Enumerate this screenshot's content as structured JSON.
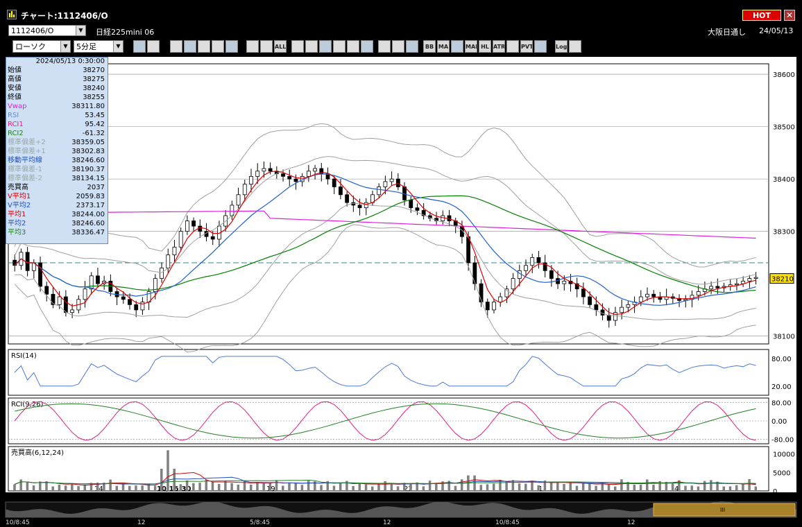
{
  "window": {
    "title": "チャート:1112406/O",
    "hot_label": "HOT",
    "close_label": "✕"
  },
  "symbol_bar": {
    "symbol_code": "1112406/O",
    "symbol_name": "日経225mini 06",
    "market": "大阪日通し",
    "date": "24/05/13"
  },
  "toolbar": {
    "chart_type": "ローソク",
    "interval": "5分足",
    "buttons": [
      "search-icon",
      "crosshair-icon",
      "insert-icon",
      "zoom-icon",
      "range-icon",
      "compare-icon",
      "line-icon",
      "bar-icon",
      "bar2-icon",
      "all-icon",
      "pen-icon",
      "draw-icon",
      "cursor-icon",
      "arrow-icon",
      "note-icon",
      "clear-icon",
      "grid-icon",
      "wrench-icon",
      "palette-icon",
      "bb-icon",
      "ma-icon",
      "env-icon",
      "mae-icon",
      "hl-icon",
      "atr-icon",
      "ichimoku-icon",
      "pvt-icon",
      "fullscreen-icon",
      "log-icon",
      "export-icon"
    ],
    "button_labels": [
      "",
      "",
      "",
      "",
      "",
      "",
      "",
      "",
      "",
      "ALL",
      "",
      "",
      "",
      "",
      "",
      "",
      "",
      "",
      "",
      "BB",
      "MA",
      "",
      "MAE",
      "HL",
      "ATR",
      "",
      "PVT",
      "",
      "Log",
      ""
    ]
  },
  "data_window": {
    "datetime": "2024/05/13  0:30:00",
    "rows": [
      {
        "k": "始値",
        "v": "38270",
        "c": "#000"
      },
      {
        "k": "高値",
        "v": "38275",
        "c": "#000"
      },
      {
        "k": "安値",
        "v": "38240",
        "c": "#000"
      },
      {
        "k": "終値",
        "v": "38255",
        "c": "#000"
      },
      {
        "k": "Vwap",
        "v": "38311.80",
        "c": "#e020e0"
      },
      {
        "k": "RSI",
        "v": "53.45",
        "c": "#6a8ad0"
      },
      {
        "k": "RCI1",
        "v": "95.42",
        "c": "#e02080"
      },
      {
        "k": "RCI2",
        "v": "-61.32",
        "c": "#208020"
      },
      {
        "k": "標準偏差+2",
        "v": "38359.05",
        "c": "#9aa"
      },
      {
        "k": "標準偏差+1",
        "v": "38302.83",
        "c": "#9aa"
      },
      {
        "k": "移動平均線",
        "v": "38246.60",
        "c": "#2050c0"
      },
      {
        "k": "標準偏差-1",
        "v": "38190.37",
        "c": "#9aa"
      },
      {
        "k": "標準偏差-2",
        "v": "38134.15",
        "c": "#9aa"
      },
      {
        "k": "売買高",
        "v": "2037",
        "c": "#000"
      },
      {
        "k": "V平均1",
        "v": "2059.83",
        "c": "#d00000"
      },
      {
        "k": "V平均2",
        "v": "2373.17",
        "c": "#2050c0"
      },
      {
        "k": "平均1",
        "v": "38244.00",
        "c": "#d00000"
      },
      {
        "k": "平均2",
        "v": "38246.60",
        "c": "#2050c0"
      },
      {
        "k": "平均3",
        "v": "38336.47",
        "c": "#208020"
      }
    ]
  },
  "price_axis": {
    "ticks": [
      "38600",
      "38500",
      "38400",
      "38300",
      "38210",
      "38100"
    ],
    "last_price": "38210"
  },
  "x_axis": {
    "labels": [
      "14",
      "10/16:30",
      "19",
      "22",
      "1",
      "4"
    ]
  },
  "panes": {
    "rsi": {
      "title": "RSI(14)",
      "ticks": [
        "80.00",
        "20.00"
      ]
    },
    "rci": {
      "title": "RCI(9,26)",
      "ticks": [
        "80.00",
        "0.00",
        "-80.00"
      ]
    },
    "volume": {
      "title": "売買高(6,12,24)",
      "ticks": [
        "10000",
        "5000",
        "0"
      ]
    }
  },
  "scroller": {
    "labels": [
      "10/8:45",
      "12",
      "5/8:45",
      "12",
      "10/8:45",
      "12"
    ]
  },
  "colors": {
    "ma_short": "#e00000",
    "ma_mid": "#1f5fd0",
    "ma_long": "#008000",
    "vwap": "#e020e0",
    "bands": "#a0a0a0",
    "dash": "#2a8a8a",
    "rsi": "#4a7ad8",
    "rci1": "#e02080",
    "rci2": "#208020",
    "volume": "#808080"
  },
  "chart_data": {
    "type": "candlestick",
    "ylim": [
      38085,
      38620
    ],
    "close": [
      38235,
      38260,
      38225,
      38240,
      38195,
      38180,
      38160,
      38175,
      38145,
      38150,
      38170,
      38190,
      38215,
      38200,
      38205,
      38185,
      38175,
      38170,
      38160,
      38150,
      38165,
      38185,
      38210,
      38230,
      38255,
      38270,
      38300,
      38320,
      38310,
      38300,
      38290,
      38285,
      38310,
      38330,
      38350,
      38370,
      38390,
      38405,
      38415,
      38420,
      38415,
      38410,
      38405,
      38400,
      38395,
      38405,
      38415,
      38420,
      38410,
      38400,
      38385,
      38370,
      38355,
      38350,
      38345,
      38355,
      38370,
      38385,
      38395,
      38400,
      38385,
      38360,
      38345,
      38340,
      38330,
      38325,
      38320,
      38330,
      38320,
      38310,
      38290,
      38240,
      38200,
      38165,
      38150,
      38165,
      38175,
      38190,
      38210,
      38225,
      38235,
      38250,
      38240,
      38225,
      38210,
      38200,
      38205,
      38200,
      38190,
      38175,
      38160,
      38150,
      38140,
      38130,
      38145,
      38155,
      38160,
      38165,
      38175,
      38180,
      38175,
      38170,
      38175,
      38172,
      38168,
      38170,
      38178,
      38185,
      38190,
      38195,
      38192,
      38195,
      38198,
      38200,
      38205,
      38210,
      38212
    ]
  }
}
